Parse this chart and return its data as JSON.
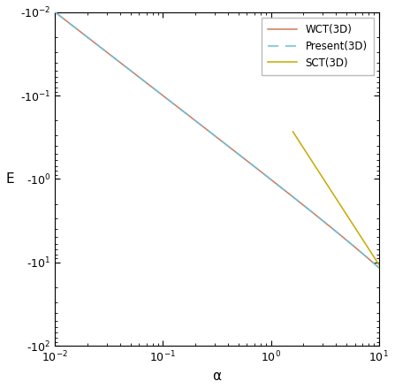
{
  "xlabel": "α",
  "ylabel": "E",
  "xlim": [
    0.01,
    10.0
  ],
  "ylim_abs": [
    0.01,
    100.0
  ],
  "legend_entries": [
    "Present(3D)",
    "WCT(3D)",
    "SCT(3D)"
  ],
  "colors": {
    "present": "#6bbfd9",
    "wct": "#cc7a5a",
    "sct": "#c8a800"
  },
  "wct_alpha_range": [
    0.01,
    10.0
  ],
  "present_alpha_range": [
    0.01,
    10.0
  ],
  "sct_alpha_range": [
    1.6,
    10.0
  ],
  "ytick_positions": [
    0.01,
    0.1,
    1.0,
    10.0,
    100.0
  ],
  "ytick_labels": [
    "-10$^{-2}$",
    "-10$^{-1}$",
    "-10$^{0}$",
    "-10$^{1}$",
    "-10$^{2}$"
  ],
  "xtick_positions": [
    0.01,
    0.1,
    1.0,
    10.0
  ],
  "xtick_labels": [
    "10$^{-2}$",
    "10$^{-1}$",
    "10$^{0}$",
    "10$^{1}$"
  ]
}
